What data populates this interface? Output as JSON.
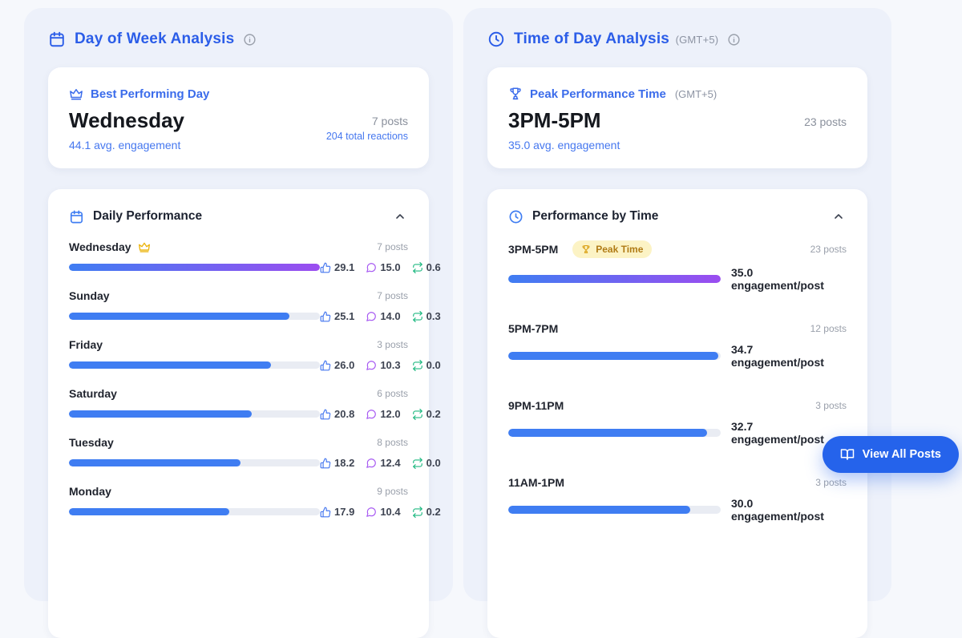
{
  "colors": {
    "accent_blue": "#2b5de8",
    "bar_blue": "#3f7df2",
    "bar_purple": "#9b4df0",
    "like_blue": "#4577ef",
    "comment_purple": "#a556f2",
    "share_green": "#1fb981",
    "badge_bg": "#fcf3c5",
    "badge_text": "#b07b15",
    "panel_bg": "#edf1fa",
    "button_blue": "#2563eb"
  },
  "icons": {
    "calendar": "calendar-icon",
    "clock": "clock-icon",
    "info": "info-icon",
    "crown": "crown-icon",
    "trophy": "trophy-icon",
    "thumbs_up": "thumbs-up-icon",
    "comment": "comment-icon",
    "share": "repeat-share-icon",
    "chevron_up": "chevron-up-icon",
    "book": "open-book-icon"
  },
  "day_panel": {
    "title": "Day of Week Analysis",
    "best": {
      "label": "Best Performing Day",
      "value": "Wednesday",
      "engagement": "44.1 avg. engagement",
      "posts": "7 posts",
      "reactions": "204 total reactions"
    },
    "list": {
      "title": "Daily Performance",
      "rows": [
        {
          "label": "Wednesday",
          "posts": "7 posts",
          "pct": 100,
          "likes": "29.1",
          "comments": "15.0",
          "shares": "0.6",
          "peak": true
        },
        {
          "label": "Sunday",
          "posts": "7 posts",
          "pct": 87.8,
          "likes": "25.1",
          "comments": "14.0",
          "shares": "0.3"
        },
        {
          "label": "Friday",
          "posts": "3 posts",
          "pct": 80.5,
          "likes": "26.0",
          "comments": "10.3",
          "shares": "0.0"
        },
        {
          "label": "Saturday",
          "posts": "6 posts",
          "pct": 72.8,
          "likes": "20.8",
          "comments": "12.0",
          "shares": "0.2"
        },
        {
          "label": "Tuesday",
          "posts": "8 posts",
          "pct": 68.5,
          "likes": "18.2",
          "comments": "12.4",
          "shares": "0.0"
        },
        {
          "label": "Monday",
          "posts": "9 posts",
          "pct": 63.9,
          "likes": "17.9",
          "comments": "10.4",
          "shares": "0.2"
        }
      ]
    }
  },
  "time_panel": {
    "title": "Time of Day Analysis",
    "timezone": "(GMT+5)",
    "best": {
      "label": "Peak Performance Time",
      "timezone": "(GMT+5)",
      "value": "3PM-5PM",
      "engagement": "35.0 avg. engagement",
      "posts": "23 posts"
    },
    "list": {
      "title": "Performance by Time",
      "peak_badge": "Peak Time",
      "rows": [
        {
          "label": "3PM-5PM",
          "posts": "23 posts",
          "pct": 100,
          "value": "35.0 engagement/post",
          "peak": true
        },
        {
          "label": "5PM-7PM",
          "posts": "12 posts",
          "pct": 99,
          "value": "34.7 engagement/post"
        },
        {
          "label": "9PM-11PM",
          "posts": "3 posts",
          "pct": 93.4,
          "value": "32.7 engagement/post"
        },
        {
          "label": "11AM-1PM",
          "posts": "3 posts",
          "pct": 85.7,
          "value": "30.0 engagement/post"
        }
      ]
    }
  },
  "view_all": {
    "label": "View All Posts"
  }
}
